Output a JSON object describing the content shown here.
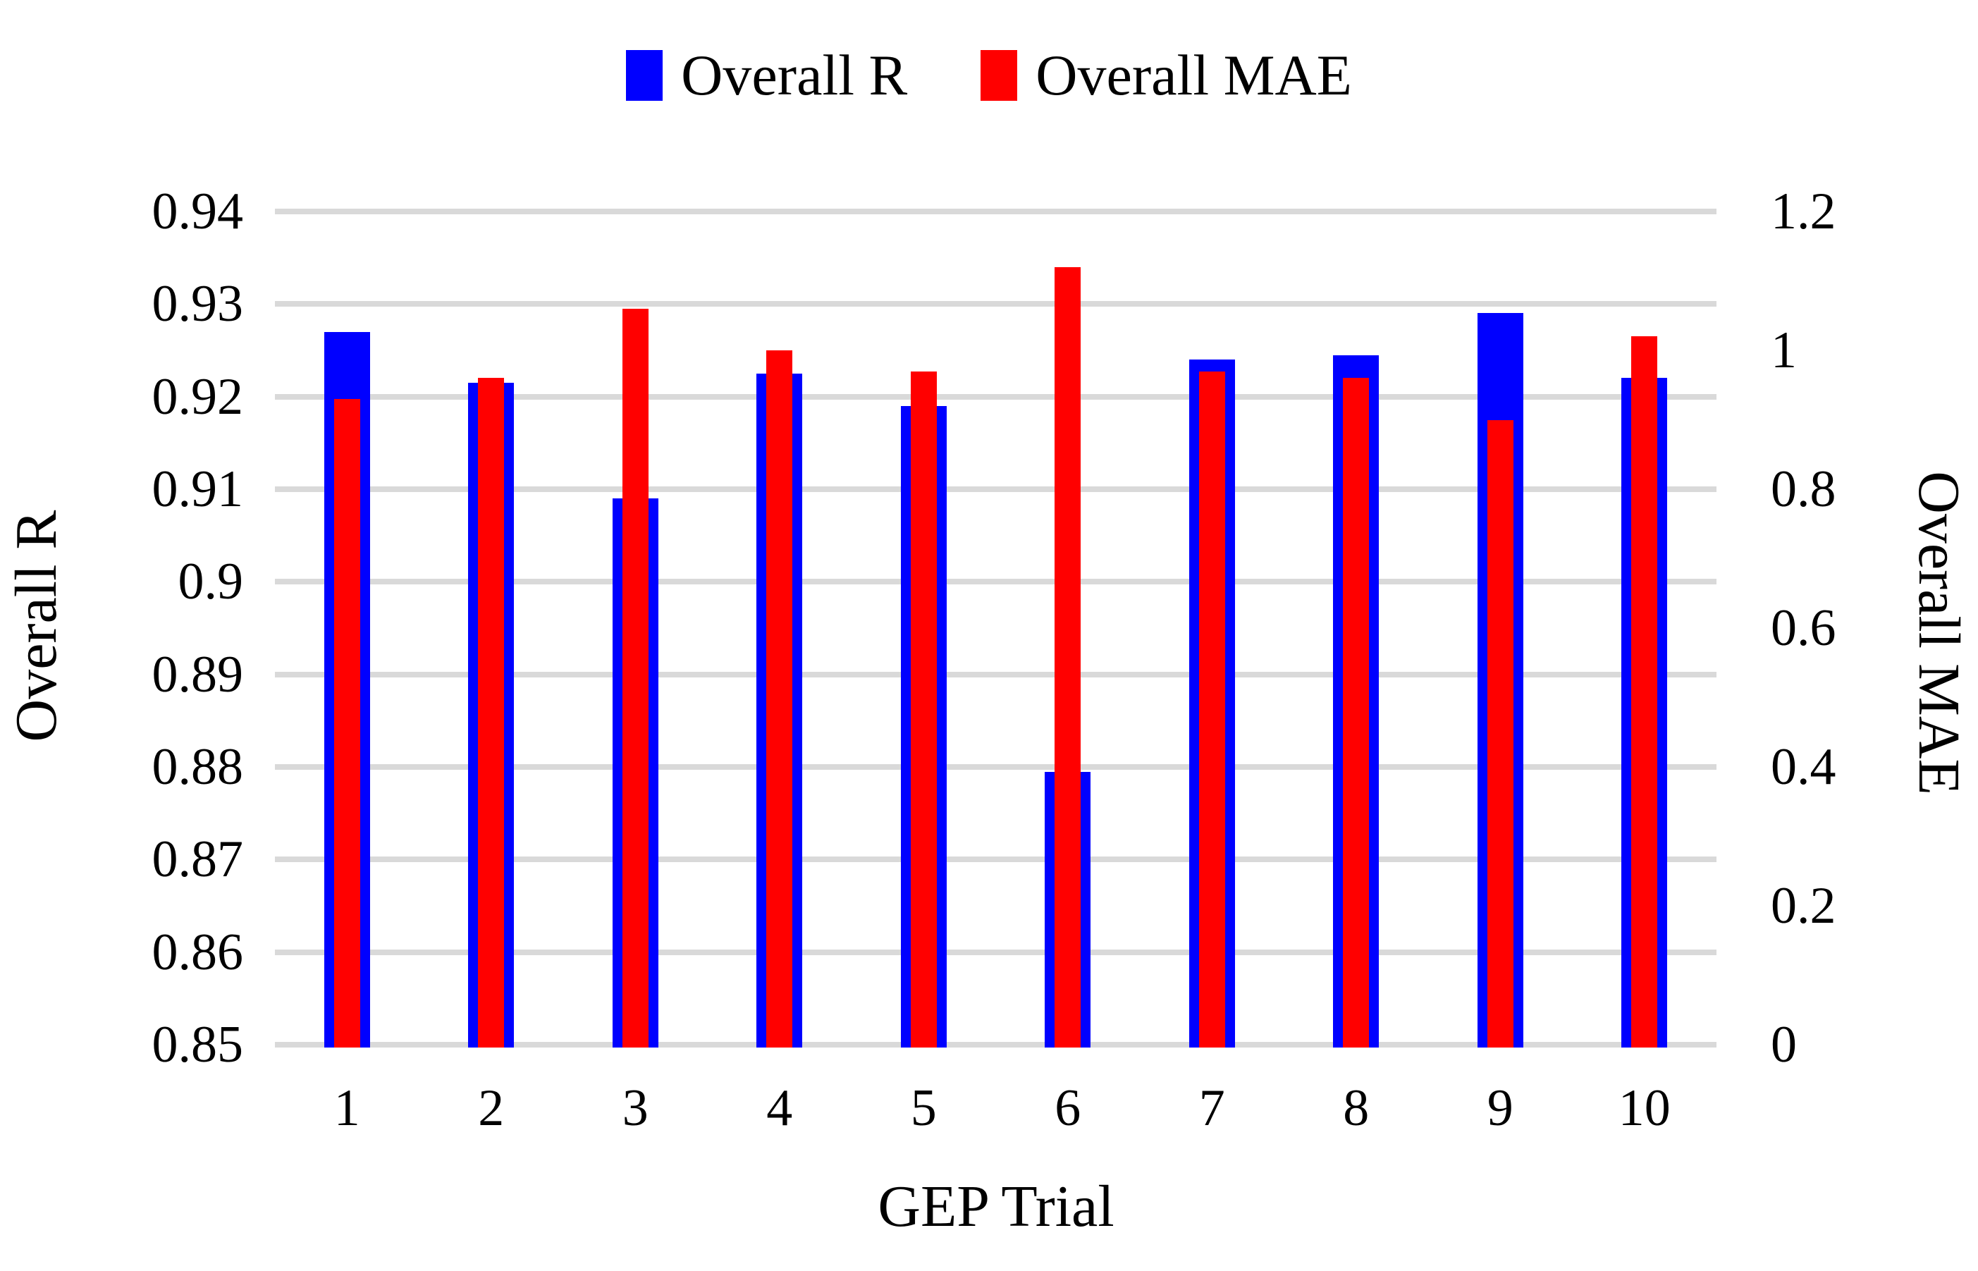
{
  "legend": {
    "items": [
      {
        "label": "Overall R",
        "color": "#0000ff"
      },
      {
        "label": "Overall MAE",
        "color": "#ff0000"
      }
    ]
  },
  "chart_data": {
    "type": "bar",
    "categories": [
      "1",
      "2",
      "3",
      "4",
      "5",
      "6",
      "7",
      "8",
      "9",
      "10"
    ],
    "xlabel": "GEP Trial",
    "ylabel_left": "Overall R",
    "ylabel_right": "Overall MAE",
    "ylim_left": [
      0.85,
      0.94
    ],
    "ylim_right": [
      0,
      1.2
    ],
    "yticks_left": [
      "0.94",
      "0.93",
      "0.92",
      "0.91",
      "0.9",
      "0.89",
      "0.88",
      "0.87",
      "0.86",
      "0.85"
    ],
    "yticks_right": [
      "1.2",
      "1",
      "0.8",
      "0.6",
      "0.4",
      "0.2",
      "0"
    ],
    "grid": true,
    "legend_position": "top",
    "series": [
      {
        "name": "Overall R",
        "axis": "left",
        "color": "#0000ff",
        "values": [
          0.927,
          0.9215,
          0.909,
          0.9225,
          0.919,
          0.8795,
          0.924,
          0.9245,
          0.929,
          0.922
        ]
      },
      {
        "name": "Overall MAE",
        "axis": "right",
        "color": "#ff0000",
        "values": [
          0.93,
          0.96,
          1.06,
          1.0,
          0.97,
          1.12,
          0.97,
          0.96,
          0.9,
          1.02
        ]
      }
    ]
  },
  "colors": {
    "background": "#ffffff",
    "grid": "#d9d9d9",
    "text": "#000000",
    "bar_overall_r": "#0000ff",
    "bar_overall_mae": "#ff0000"
  }
}
